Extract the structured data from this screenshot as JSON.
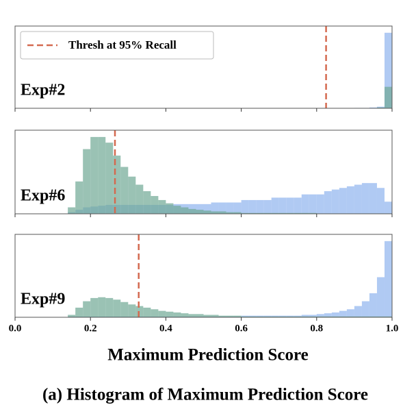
{
  "chart_data": {
    "type": "histogram",
    "title": "(a) Histogram of Maximum Prediction Score",
    "xlabel": "Maximum Prediction Score",
    "legend": "Thresh at 95% Recall",
    "threshold_color": "#d46a50",
    "xlim": [
      0,
      1
    ],
    "xticks": [
      {
        "value": 0,
        "label": "0.0"
      },
      0.2,
      0.4,
      0.6,
      0.8,
      {
        "value": 1,
        "label": "1.0"
      }
    ],
    "bins": [
      0,
      0.02,
      0.04,
      0.06,
      0.08,
      0.1,
      0.12,
      0.14,
      0.16,
      0.18,
      0.2,
      0.22,
      0.24,
      0.26,
      0.28,
      0.3,
      0.32,
      0.34,
      0.36,
      0.38,
      0.4,
      0.42,
      0.44,
      0.46,
      0.48,
      0.5,
      0.52,
      0.54,
      0.56,
      0.58,
      0.6,
      0.62,
      0.64,
      0.66,
      0.68,
      0.7,
      0.72,
      0.74,
      0.76,
      0.78,
      0.8,
      0.82,
      0.84,
      0.86,
      0.88,
      0.9,
      0.92,
      0.94,
      0.96,
      0.98,
      1
    ],
    "panels": [
      {
        "label": "Exp#2",
        "threshold": 0.825,
        "ylim": [
          0,
          100
        ],
        "series": [
          {
            "color": "#8fb4ee",
            "values": [
              0,
              0,
              0,
              0,
              0,
              0,
              0,
              0,
              0,
              0,
              0,
              0,
              0,
              0,
              0,
              0,
              0,
              0,
              0,
              0,
              0,
              0,
              0,
              0,
              0,
              0,
              0,
              0,
              0,
              0,
              0,
              0,
              0,
              0,
              0,
              0,
              0,
              0,
              0,
              0,
              0,
              0,
              0,
              0,
              0,
              0.5,
              0.5,
              1,
              2,
              95
            ]
          },
          {
            "color": "#6fa894",
            "values": [
              0,
              0,
              0,
              0,
              0,
              0,
              0,
              0,
              0,
              0,
              0,
              0,
              0,
              0,
              0,
              0,
              0,
              0,
              0,
              0,
              0,
              0,
              0,
              0,
              0,
              0,
              0,
              0,
              0,
              0,
              0,
              0,
              0,
              0,
              0,
              0,
              0,
              0,
              0,
              0,
              0,
              0,
              0,
              0,
              0,
              0,
              0,
              0,
              1,
              27
            ]
          }
        ]
      },
      {
        "label": "Exp#6",
        "threshold": 0.265,
        "ylim": [
          0,
          100
        ],
        "series": [
          {
            "color": "#8fb4ee",
            "values": [
              0,
              0,
              0,
              0,
              0,
              0,
              0,
              2,
              5,
              8,
              9,
              10,
              11,
              11,
              11,
              11,
              11,
              11,
              11,
              11,
              11,
              12,
              12,
              12,
              12,
              12,
              14,
              14,
              14,
              14,
              17,
              17,
              17,
              17,
              20,
              20,
              20,
              20,
              24,
              24,
              24,
              28,
              30,
              32,
              34,
              36,
              38,
              38,
              32,
              15
            ]
          },
          {
            "color": "#6fa894",
            "values": [
              0,
              0,
              0,
              0,
              0,
              0,
              0,
              8,
              40,
              80,
              95,
              95,
              88,
              72,
              58,
              46,
              36,
              28,
              22,
              17,
              13,
              10,
              8,
              6,
              5,
              4,
              3,
              3,
              2,
              2,
              1,
              1,
              1,
              1,
              1,
              1,
              1,
              1,
              1,
              1,
              0.5,
              0.5,
              0.5,
              0.5,
              0.5,
              0.5,
              0.5,
              0.5,
              0.5,
              0.5
            ]
          }
        ]
      },
      {
        "label": "Exp#9",
        "threshold": 0.328,
        "ylim": [
          0,
          100
        ],
        "series": [
          {
            "color": "#8fb4ee",
            "values": [
              0,
              0,
              0,
              0,
              0,
              0,
              0,
              1,
              1,
              1,
              1,
              1,
              1,
              1,
              1,
              1,
              1,
              1,
              1,
              1,
              1,
              1,
              1,
              1,
              1,
              1,
              1,
              1,
              1,
              1,
              2,
              2,
              2,
              2,
              2,
              2,
              2,
              2,
              3,
              3,
              4,
              5,
              6,
              8,
              10,
              14,
              20,
              30,
              50,
              95
            ]
          },
          {
            "color": "#6fa894",
            "values": [
              0,
              0,
              0,
              0,
              0,
              0,
              0,
              3,
              12,
              20,
              24,
              25,
              24,
              22,
              19,
              16,
              14,
              12,
              10,
              8,
              7,
              6,
              5,
              4,
              4,
              3,
              3,
              2,
              2,
              2,
              1,
              1,
              1,
              1,
              1,
              1,
              1,
              1,
              1,
              1,
              1,
              1,
              1,
              1,
              1,
              1,
              1,
              1,
              1,
              1
            ]
          }
        ]
      }
    ]
  }
}
